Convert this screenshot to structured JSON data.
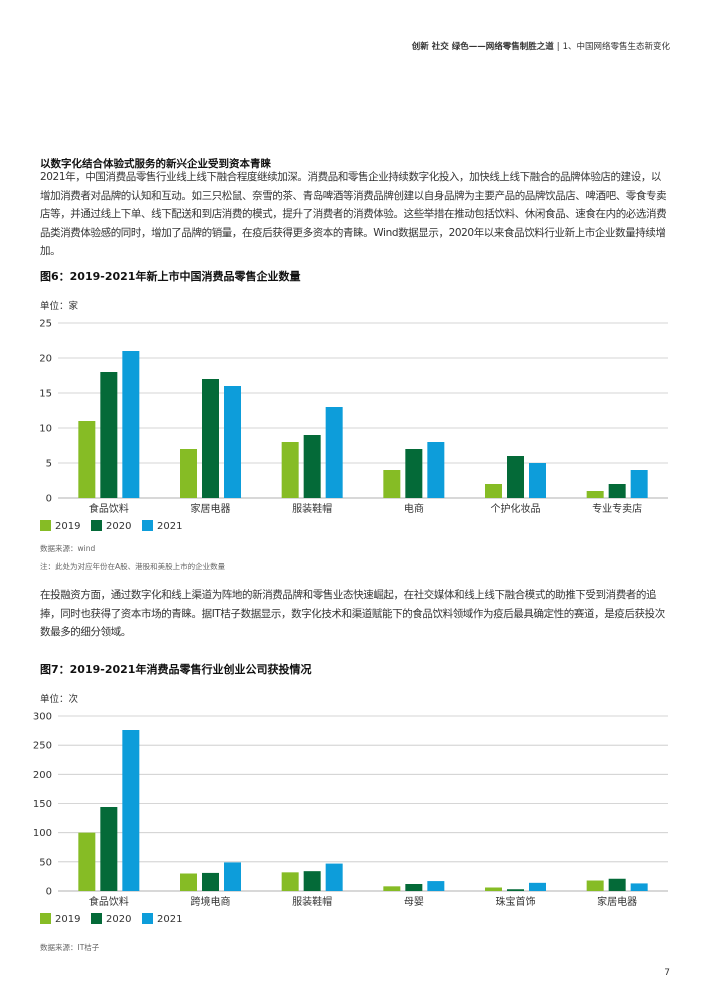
{
  "header": {
    "title": "创新 社交 绿色——网络零售制胜之道",
    "separator": "|",
    "section": "1、中国网络零售生态新变化"
  },
  "section1": {
    "heading": "以数字化结合体验式服务的新兴企业受到资本青睐",
    "paragraph": "2021年，中国消费品零售行业线上线下融合程度继续加深。消费品和零售企业持续数字化投入，加快线上线下融合的品牌体验店的建设，以增加消费者对品牌的认知和互动。如三只松鼠、奈雪的茶、青岛啤酒等消费品牌创建以自身品牌为主要产品的品牌饮品店、啤酒吧、零食专卖店等，并通过线上下单、线下配送和到店消费的模式，提升了消费者的消费体验。这些举措在推动包括饮料、休闲食品、速食在内的必选消费品类消费体验感的同时，增加了品牌的销量，在疫后获得更多资本的青睐。Wind数据显示，2020年以来食品饮料行业新上市企业数量持续增加。"
  },
  "section2": {
    "paragraph": "在投融资方面，通过数字化和线上渠道为阵地的新消费品牌和零售业态快速崛起，在社交媒体和线上线下融合模式的助推下受到消费者的追捧，同时也获得了资本市场的青睐。据IT桔子数据显示，数字化技术和渠道赋能下的食品饮料领域作为疫后最具确定性的赛道，是疫后获投次数最多的细分领域。"
  },
  "figures": {
    "fig6": {
      "title": "图6：2019-2021年新上市中国消费品零售企业数量",
      "source": "数据来源：wind",
      "note": "注：此处为对应年份在A股、港股和美股上市的企业数量"
    },
    "fig7": {
      "title": "图7：2019-2021年消费品零售行业创业公司获投情况",
      "source": "数据来源：IT桔子"
    }
  },
  "colors": {
    "2019": "#86bc25",
    "2020": "#046a38",
    "2021": "#0d9dda",
    "grid": "#c8c8c8"
  },
  "chart_data": [
    {
      "type": "bar",
      "unit_label": "单位：家",
      "categories": [
        "食品饮料",
        "家居电器",
        "服装鞋帽",
        "电商",
        "个护化妆品",
        "专业专卖店"
      ],
      "series": [
        {
          "name": "2019",
          "values": [
            11,
            7,
            8,
            4,
            2,
            1
          ]
        },
        {
          "name": "2020",
          "values": [
            18,
            17,
            9,
            7,
            6,
            2
          ]
        },
        {
          "name": "2021",
          "values": [
            21,
            16,
            13,
            8,
            5,
            4
          ]
        }
      ],
      "yticks": [
        0,
        5,
        10,
        15,
        20,
        25
      ],
      "ylim": [
        0,
        25
      ],
      "grid": true,
      "legend": "bottom-left"
    },
    {
      "type": "bar",
      "unit_label": "单位：次",
      "categories": [
        "食品饮料",
        "跨境电商",
        "服装鞋帽",
        "母婴",
        "珠宝首饰",
        "家居电器"
      ],
      "series": [
        {
          "name": "2019",
          "values": [
            100,
            30,
            32,
            8,
            6,
            18
          ]
        },
        {
          "name": "2020",
          "values": [
            144,
            31,
            34,
            12,
            3,
            21
          ]
        },
        {
          "name": "2021",
          "values": [
            276,
            49,
            47,
            17,
            14,
            13
          ]
        }
      ],
      "yticks": [
        0,
        50,
        100,
        150,
        200,
        250,
        300
      ],
      "ylim": [
        0,
        300
      ],
      "grid": true,
      "legend": "bottom-left"
    }
  ],
  "page_number": "7"
}
